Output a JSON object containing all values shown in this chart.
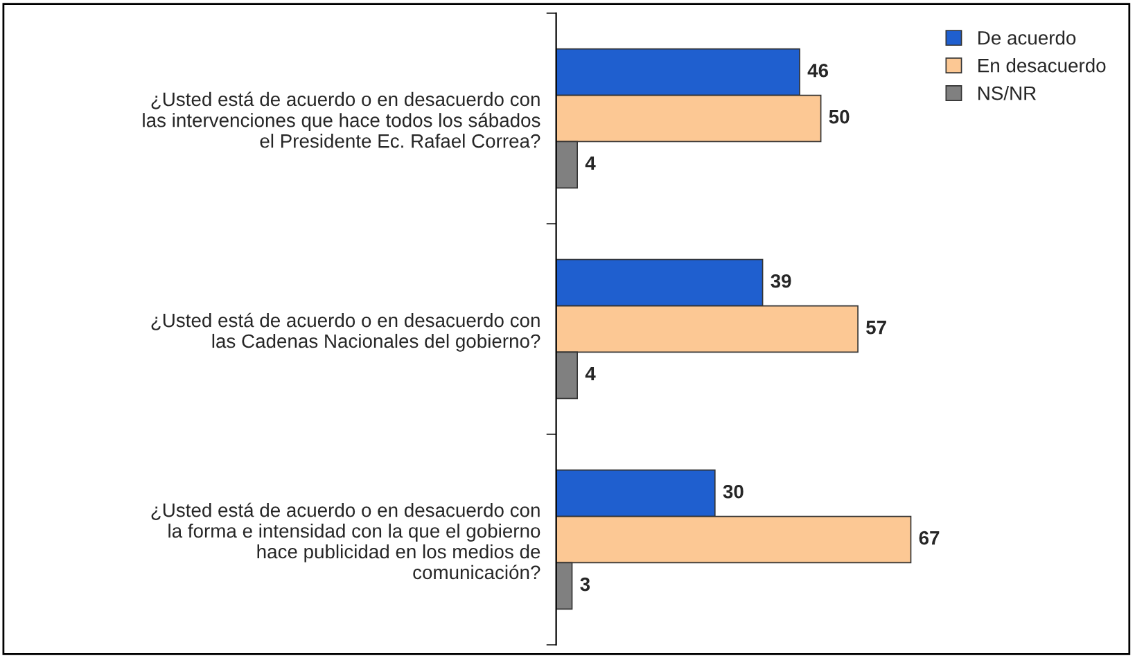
{
  "chart_data": {
    "type": "bar",
    "orientation": "horizontal",
    "categories": [
      "¿Usted está de acuerdo o en desacuerdo con\nlas intervenciones que hace todos los sábados\nel Presidente Ec. Rafael Correa?",
      "¿Usted está de acuerdo o en desacuerdo con\nlas Cadenas Nacionales del gobierno?",
      "¿Usted está de acuerdo o en desacuerdo con\nla forma e intensidad con la que el gobierno\nhace publicidad en los medios de\ncomunicación?"
    ],
    "series": [
      {
        "name": "De acuerdo",
        "color": "#1f5fcf",
        "values": [
          46,
          39,
          30
        ]
      },
      {
        "name": "En desacuerdo",
        "color": "#fcc894",
        "values": [
          50,
          57,
          67
        ]
      },
      {
        "name": "NS/NR",
        "color": "#808080",
        "values": [
          4,
          4,
          3
        ]
      }
    ],
    "data_labels": true,
    "legend": "top right",
    "grid": false
  }
}
